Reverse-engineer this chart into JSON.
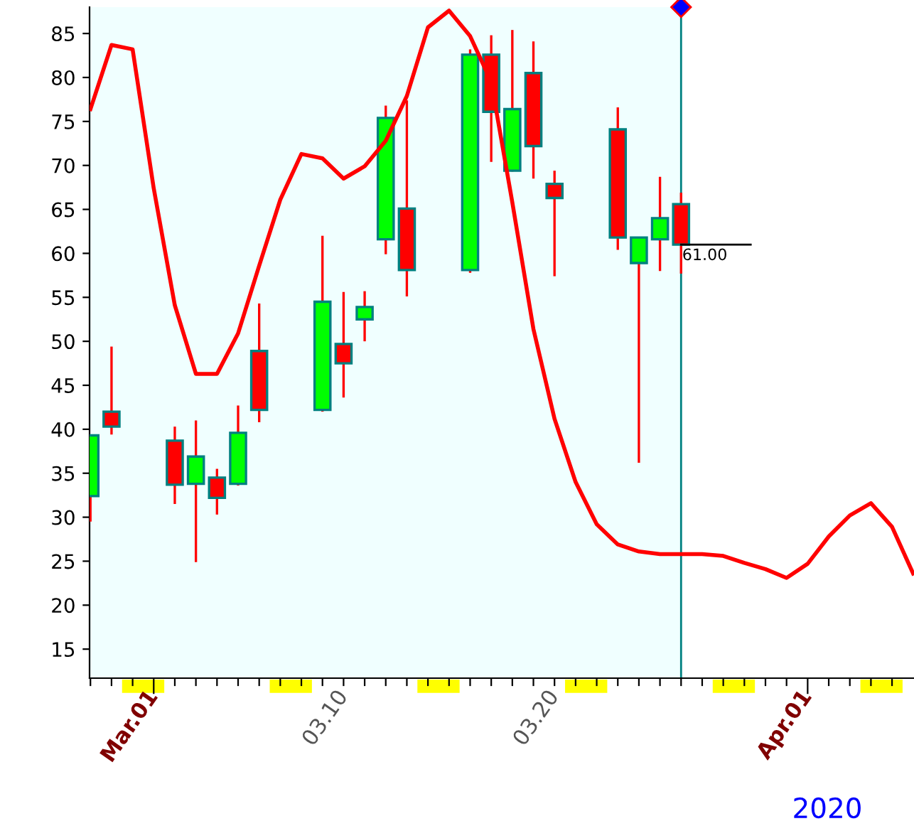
{
  "chart_data": {
    "type": "candlestick",
    "series": [
      {
        "type": "line",
        "color": "#ff0000",
        "x": [
          "2020-02-27",
          "2020-02-28",
          "2020-02-29",
          "2020-03-01",
          "2020-03-02",
          "2020-03-03",
          "2020-03-04",
          "2020-03-05",
          "2020-03-06",
          "2020-03-07",
          "2020-03-08",
          "2020-03-09",
          "2020-03-10",
          "2020-03-11",
          "2020-03-12",
          "2020-03-13",
          "2020-03-14",
          "2020-03-15",
          "2020-03-16",
          "2020-03-17",
          "2020-03-18",
          "2020-03-19",
          "2020-03-20",
          "2020-03-21",
          "2020-03-22",
          "2020-03-23",
          "2020-03-24",
          "2020-03-25",
          "2020-03-26",
          "2020-03-27",
          "2020-03-28",
          "2020-03-29",
          "2020-03-30",
          "2020-03-31",
          "2020-04-01",
          "2020-04-02",
          "2020-04-03",
          "2020-04-04",
          "2020-04-05",
          "2020-04-06"
        ],
        "values": [
          76.4,
          83.7,
          83.2,
          67.4,
          54.1,
          46.3,
          46.3,
          50.9,
          58.6,
          66.1,
          71.3,
          70.8,
          68.5,
          69.9,
          72.8,
          77.9,
          85.7,
          87.6,
          84.7,
          79.5,
          65.8,
          51.4,
          41.2,
          34.0,
          29.2,
          26.9,
          26.1,
          25.8,
          25.8,
          25.8,
          25.6,
          24.8,
          24.1,
          23.1,
          24.7,
          27.8,
          30.2,
          31.6,
          28.9,
          23.6
        ]
      },
      {
        "x": [
          "2020-02-27",
          "2020-02-28",
          "2020-03-02",
          "2020-03-03",
          "2020-03-04",
          "2020-03-05",
          "2020-03-06",
          "2020-03-09",
          "2020-03-10",
          "2020-03-11",
          "2020-03-12",
          "2020-03-13",
          "2020-03-16",
          "2020-03-17",
          "2020-03-18",
          "2020-03-19",
          "2020-03-20",
          "2020-03-23",
          "2020-03-24",
          "2020-03-25",
          "2020-03-26"
        ],
        "colors": [
          "#00ff00",
          "#ff0000",
          "#ff0000",
          "#00ff00",
          "#ff0000",
          "#00ff00",
          "#ff0000",
          "#00ff00",
          "#ff0000",
          "#00ff00",
          "#00ff00",
          "#ff0000",
          "#00ff00",
          "#ff0000",
          "#00ff00",
          "#ff0000",
          "#ff0000",
          "#ff0000",
          "#00ff00",
          "#00ff00",
          "#ff0000"
        ],
        "ohlc": [
          [
            32.4,
            39.3,
            29.5,
            39.3
          ],
          [
            42.0,
            49.4,
            39.4,
            40.3
          ],
          [
            38.7,
            40.3,
            31.5,
            33.7
          ],
          [
            33.8,
            41.0,
            24.9,
            36.9
          ],
          [
            34.5,
            35.5,
            30.3,
            32.2
          ],
          [
            33.8,
            42.7,
            33.6,
            39.6
          ],
          [
            48.9,
            54.3,
            40.8,
            42.2
          ],
          [
            42.2,
            62.0,
            42.0,
            54.5
          ],
          [
            49.7,
            55.6,
            43.6,
            47.5
          ],
          [
            52.5,
            55.7,
            50.0,
            53.9
          ],
          [
            61.6,
            76.8,
            59.9,
            75.4
          ],
          [
            65.1,
            77.4,
            55.1,
            58.1
          ],
          [
            58.1,
            83.2,
            57.8,
            82.6
          ],
          [
            82.6,
            84.8,
            70.4,
            76.1
          ],
          [
            69.4,
            85.4,
            69.3,
            76.4
          ],
          [
            80.5,
            84.1,
            68.5,
            72.2
          ],
          [
            67.9,
            69.4,
            57.4,
            66.3
          ],
          [
            74.1,
            76.6,
            60.4,
            61.8
          ],
          [
            58.9,
            61.8,
            36.2,
            61.8
          ],
          [
            61.6,
            68.7,
            58.0,
            64.0
          ],
          [
            65.6,
            66.9,
            57.7,
            61.0
          ]
        ]
      }
    ],
    "xlim": [
      "2020-02-26T23:00",
      "2020-04-06T01:00"
    ],
    "xticks": [
      {
        "value": "2020-02-27",
        "label": null
      },
      {
        "value": "2020-02-28",
        "label": null
      },
      {
        "value": "2020-02-29",
        "label": null
      },
      {
        "value": "2020-03-01",
        "label": "Mar.01"
      },
      {
        "value": "2020-03-02",
        "label": null
      },
      {
        "value": "2020-03-03",
        "label": null
      },
      {
        "value": "2020-03-04",
        "label": null
      },
      {
        "value": "2020-03-05",
        "label": null
      },
      {
        "value": "2020-03-06",
        "label": null
      },
      {
        "value": "2020-03-07",
        "label": null
      },
      {
        "value": "2020-03-08",
        "label": null
      },
      {
        "value": "2020-03-09",
        "label": null
      },
      {
        "value": "2020-03-10",
        "label": "03.10"
      },
      {
        "value": "2020-03-11",
        "label": null
      },
      {
        "value": "2020-03-12",
        "label": null
      },
      {
        "value": "2020-03-13",
        "label": null
      },
      {
        "value": "2020-03-14",
        "label": null
      },
      {
        "value": "2020-03-15",
        "label": null
      },
      {
        "value": "2020-03-16",
        "label": null
      },
      {
        "value": "2020-03-17",
        "label": null
      },
      {
        "value": "2020-03-18",
        "label": null
      },
      {
        "value": "2020-03-19",
        "label": null
      },
      {
        "value": "2020-03-20",
        "label": "03.20"
      },
      {
        "value": "2020-03-21",
        "label": null
      },
      {
        "value": "2020-03-22",
        "label": null
      },
      {
        "value": "2020-03-23",
        "label": null
      },
      {
        "value": "2020-03-24",
        "label": null
      },
      {
        "value": "2020-03-25",
        "label": null
      },
      {
        "value": "2020-03-26",
        "label": null
      },
      {
        "value": "2020-03-27",
        "label": null
      },
      {
        "value": "2020-03-28",
        "label": null
      },
      {
        "value": "2020-03-29",
        "label": null
      },
      {
        "value": "2020-03-30",
        "label": null
      },
      {
        "value": "2020-03-31",
        "label": null
      },
      {
        "value": "2020-04-01",
        "label": "Apr.01"
      },
      {
        "value": "2020-04-02",
        "label": null
      },
      {
        "value": "2020-04-03",
        "label": null
      },
      {
        "value": "2020-04-04",
        "label": null
      },
      {
        "value": "2020-04-05",
        "label": null
      }
    ],
    "ylim": [
      11.7,
      88
    ],
    "yticks": [
      15,
      20,
      25,
      30,
      35,
      40,
      45,
      50,
      55,
      60,
      65,
      70,
      75,
      80,
      85
    ],
    "bands": [
      {
        "axis": "x",
        "from": "2020-02-26T23:00",
        "to": "2020-03-26",
        "color": "#f0ffff"
      }
    ],
    "ref_lines": [
      {
        "axis": "x",
        "value": "2020-03-26",
        "color": "#008080"
      },
      {
        "axis": "y",
        "value": 61.0,
        "label": "61.00",
        "color": "#000000"
      }
    ],
    "annotations": [
      "2020"
    ],
    "grid": false,
    "legend": false
  }
}
